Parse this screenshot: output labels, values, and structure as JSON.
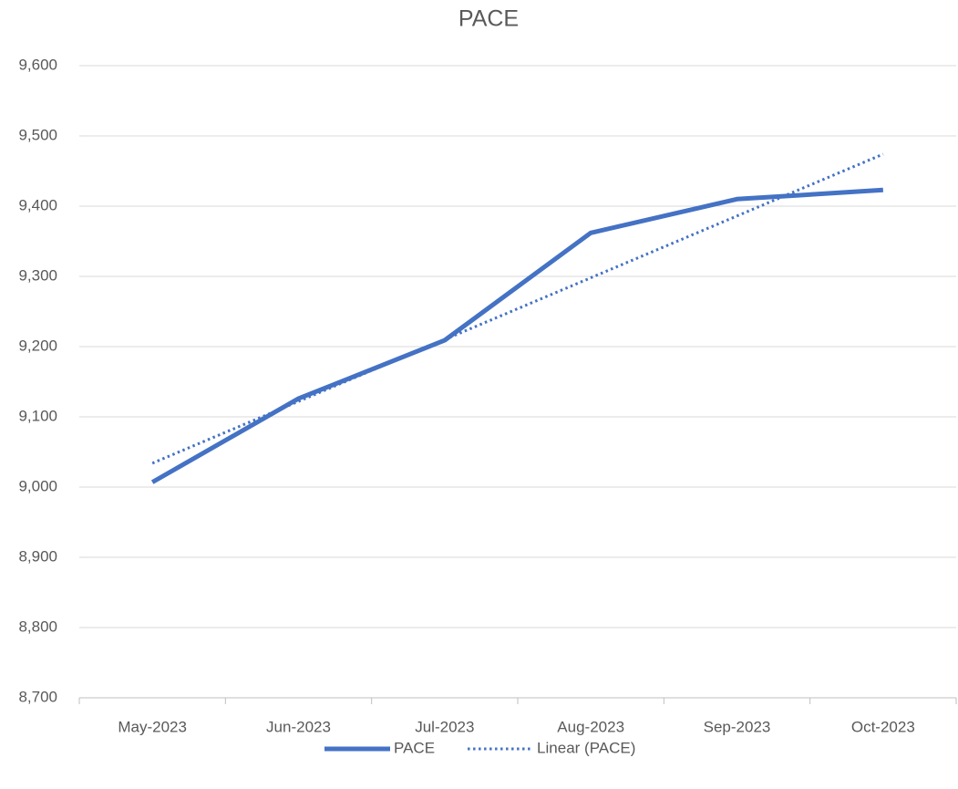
{
  "chart_data": {
    "type": "line",
    "title": "PACE",
    "categories": [
      "May-2023",
      "Jun-2023",
      "Jul-2023",
      "Aug-2023",
      "Sep-2023",
      "Oct-2023"
    ],
    "series": [
      {
        "name": "PACE",
        "color": "#4472c4",
        "style": "solid",
        "values": [
          9007,
          9126,
          9209,
          9362,
          9410,
          9423
        ]
      },
      {
        "name": "Linear (PACE)",
        "color": "#4472c4",
        "style": "dotted",
        "values": [
          9034,
          9122,
          9210,
          9298,
          9386,
          9474
        ]
      }
    ],
    "ylim": [
      8700,
      9600
    ],
    "yticks": [
      {
        "value": 8700,
        "label": "8,700"
      },
      {
        "value": 8800,
        "label": "8,800"
      },
      {
        "value": 8900,
        "label": "8,900"
      },
      {
        "value": 9000,
        "label": "9,000"
      },
      {
        "value": 9100,
        "label": "9,100"
      },
      {
        "value": 9200,
        "label": "9,200"
      },
      {
        "value": 9300,
        "label": "9,300"
      },
      {
        "value": 9400,
        "label": "9,400"
      },
      {
        "value": 9500,
        "label": "9,500"
      },
      {
        "value": 9600,
        "label": "9,600"
      }
    ],
    "grid": true,
    "legend": "bottom"
  }
}
